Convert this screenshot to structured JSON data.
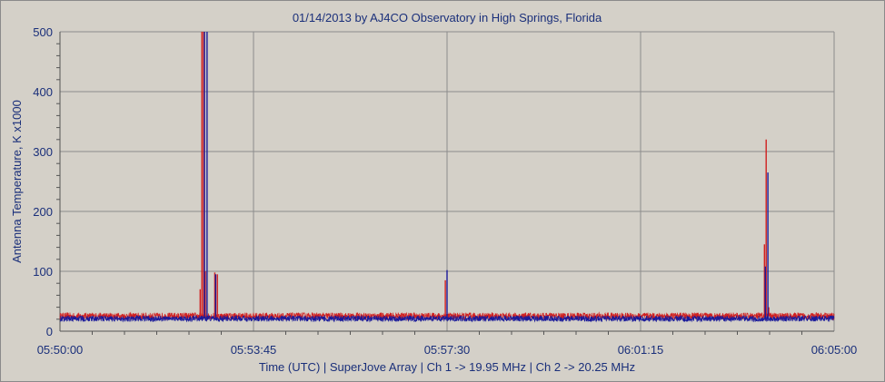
{
  "chart_data": {
    "type": "line",
    "title": "01/14/2013  by  AJ4CO Observatory  in  High Springs, Florida",
    "xlabel": "Time (UTC)  |  SuperJove Array  |  Ch 1 -> 19.95 MHz  |  Ch 2 -> 20.25 MHz",
    "ylabel": "Antenna Temperature, K x1000",
    "x_tick_labels": [
      "05:50:00",
      "05:53:45",
      "05:57:30",
      "06:01:15",
      "06:05:00"
    ],
    "y_tick_labels": [
      "0",
      "100",
      "200",
      "300",
      "400",
      "500"
    ],
    "xlim_seconds": [
      0,
      900
    ],
    "ylim": [
      0,
      500
    ],
    "grid": true,
    "colors": {
      "ch1": "#d02020",
      "ch2": "#1a1a9a",
      "grid": "#8c8c8c",
      "plot_bg": "#d4d0c8"
    },
    "series": [
      {
        "name": "Ch 1 -> 19.95 MHz",
        "color": "#d02020",
        "baseline": 25,
        "noise": 6,
        "spikes": [
          {
            "t": "05:53:00",
            "value": 98
          },
          {
            "t": "05:53:03",
            "value": 95
          },
          {
            "t": "05:52:49",
            "value": 100
          },
          {
            "t": "05:52:43",
            "value": 70
          },
          {
            "t": "05:52:45",
            "value": 500
          },
          {
            "t": "05:52:47",
            "value": 500
          },
          {
            "t": "05:57:28",
            "value": 85
          },
          {
            "t": "06:03:39",
            "value": 145
          },
          {
            "t": "06:03:41",
            "value": 320
          },
          {
            "t": "06:03:44",
            "value": 40
          }
        ]
      },
      {
        "name": "Ch 2 -> 20.25 MHz",
        "color": "#1a1a9a",
        "baseline": 21,
        "noise": 5,
        "spikes": [
          {
            "t": "05:53:01",
            "value": 95
          },
          {
            "t": "05:52:48",
            "value": 500
          },
          {
            "t": "05:52:51",
            "value": 500
          },
          {
            "t": "05:57:30",
            "value": 102
          },
          {
            "t": "06:03:40",
            "value": 108
          },
          {
            "t": "06:03:43",
            "value": 265
          }
        ]
      }
    ]
  }
}
